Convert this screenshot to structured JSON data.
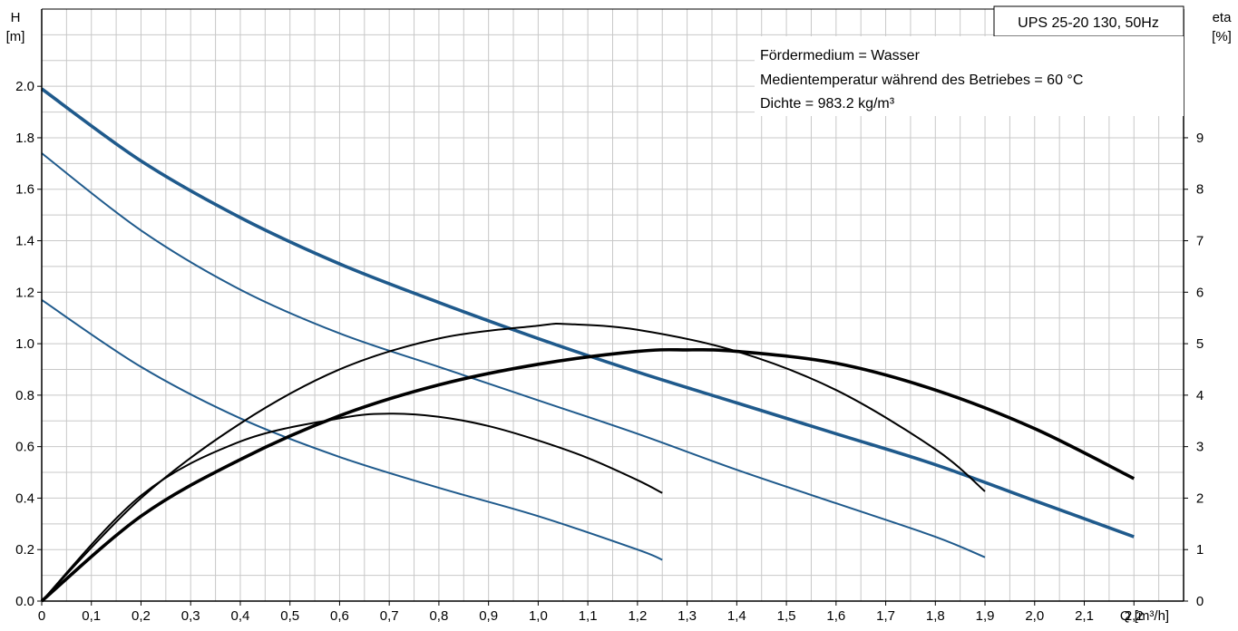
{
  "chart_data": {
    "type": "line",
    "title": "UPS 25-20 130, 50Hz",
    "annotations": [
      "Fördermedium = Wasser",
      "Medientemperatur während des Betriebes = 60 °C",
      "Dichte = 983.2 kg/m³"
    ],
    "xaxis": {
      "label": "Q [m³/h]",
      "range": [
        0,
        2.3
      ],
      "ticks": [
        0,
        0.1,
        0.2,
        0.3,
        0.4,
        0.5,
        0.6,
        0.7,
        0.8,
        0.9,
        1.0,
        1.1,
        1.2,
        1.3,
        1.4,
        1.5,
        1.6,
        1.7,
        1.8,
        1.9,
        2.0,
        2.1,
        2.2
      ],
      "tick_labels": [
        "0",
        "0,1",
        "0,2",
        "0,3",
        "0,4",
        "0,5",
        "0,6",
        "0,7",
        "0,8",
        "0,9",
        "1,0",
        "1,1",
        "1,2",
        "1,3",
        "1,4",
        "1,5",
        "1,6",
        "1,7",
        "1,8",
        "1,9",
        "2,0",
        "2,1",
        "2,2"
      ]
    },
    "yaxis_left": {
      "label_top": "H",
      "label_unit": "[m]",
      "range": [
        0,
        2.3
      ],
      "ticks": [
        0,
        0.2,
        0.4,
        0.6,
        0.8,
        1.0,
        1.2,
        1.4,
        1.6,
        1.8,
        2.0
      ],
      "tick_labels": [
        "0.0",
        "0.2",
        "0.4",
        "0.6",
        "0.8",
        "1.0",
        "1.2",
        "1.4",
        "1.6",
        "1.8",
        "2.0"
      ]
    },
    "yaxis_right": {
      "label_top": "eta",
      "label_unit": "[%]",
      "range": [
        0,
        11.5
      ],
      "ticks": [
        0,
        1,
        2,
        3,
        4,
        5,
        6,
        7,
        8,
        9
      ],
      "tick_labels": [
        "0",
        "1",
        "2",
        "3",
        "4",
        "5",
        "6",
        "7",
        "8",
        "9"
      ]
    },
    "grid": true,
    "colors": {
      "head_curve": "#1f5a8c",
      "efficiency_curve": "#000000"
    },
    "series": [
      {
        "kind": "head",
        "axis": "left",
        "weight": "bold",
        "points": [
          [
            0,
            1.99
          ],
          [
            0.2,
            1.71
          ],
          [
            0.4,
            1.49
          ],
          [
            0.6,
            1.31
          ],
          [
            0.8,
            1.16
          ],
          [
            1.0,
            1.02
          ],
          [
            1.2,
            0.89
          ],
          [
            1.4,
            0.77
          ],
          [
            1.6,
            0.65
          ],
          [
            1.8,
            0.53
          ],
          [
            2.0,
            0.39
          ],
          [
            2.2,
            0.25
          ]
        ]
      },
      {
        "kind": "head",
        "axis": "left",
        "weight": "thin",
        "points": [
          [
            0,
            1.74
          ],
          [
            0.2,
            1.44
          ],
          [
            0.4,
            1.21
          ],
          [
            0.6,
            1.04
          ],
          [
            0.8,
            0.91
          ],
          [
            1.0,
            0.78
          ],
          [
            1.2,
            0.65
          ],
          [
            1.4,
            0.51
          ],
          [
            1.6,
            0.38
          ],
          [
            1.8,
            0.25
          ],
          [
            1.9,
            0.17
          ]
        ]
      },
      {
        "kind": "head",
        "axis": "left",
        "weight": "thin",
        "points": [
          [
            0,
            1.17
          ],
          [
            0.2,
            0.91
          ],
          [
            0.4,
            0.71
          ],
          [
            0.6,
            0.56
          ],
          [
            0.8,
            0.44
          ],
          [
            1.0,
            0.33
          ],
          [
            1.2,
            0.2
          ],
          [
            1.25,
            0.16
          ]
        ]
      },
      {
        "kind": "efficiency",
        "axis": "right",
        "weight": "bold",
        "points": [
          [
            0,
            0
          ],
          [
            0.2,
            1.65
          ],
          [
            0.4,
            2.75
          ],
          [
            0.6,
            3.6
          ],
          [
            0.8,
            4.2
          ],
          [
            1.0,
            4.6
          ],
          [
            1.2,
            4.85
          ],
          [
            1.3,
            4.88
          ],
          [
            1.4,
            4.85
          ],
          [
            1.6,
            4.62
          ],
          [
            1.8,
            4.1
          ],
          [
            2.0,
            3.35
          ],
          [
            2.2,
            2.38
          ]
        ]
      },
      {
        "kind": "efficiency",
        "axis": "right",
        "weight": "thin",
        "points": [
          [
            0,
            0
          ],
          [
            0.2,
            2.0
          ],
          [
            0.4,
            3.45
          ],
          [
            0.6,
            4.5
          ],
          [
            0.8,
            5.1
          ],
          [
            1.0,
            5.35
          ],
          [
            1.06,
            5.38
          ],
          [
            1.2,
            5.27
          ],
          [
            1.4,
            4.85
          ],
          [
            1.6,
            4.1
          ],
          [
            1.8,
            2.95
          ],
          [
            1.9,
            2.13
          ]
        ]
      },
      {
        "kind": "efficiency",
        "axis": "right",
        "weight": "thin",
        "points": [
          [
            0,
            0
          ],
          [
            0.2,
            2.05
          ],
          [
            0.4,
            3.1
          ],
          [
            0.6,
            3.55
          ],
          [
            0.7,
            3.64
          ],
          [
            0.8,
            3.58
          ],
          [
            0.9,
            3.4
          ],
          [
            1.0,
            3.12
          ],
          [
            1.1,
            2.78
          ],
          [
            1.2,
            2.35
          ],
          [
            1.25,
            2.1
          ]
        ]
      }
    ]
  }
}
